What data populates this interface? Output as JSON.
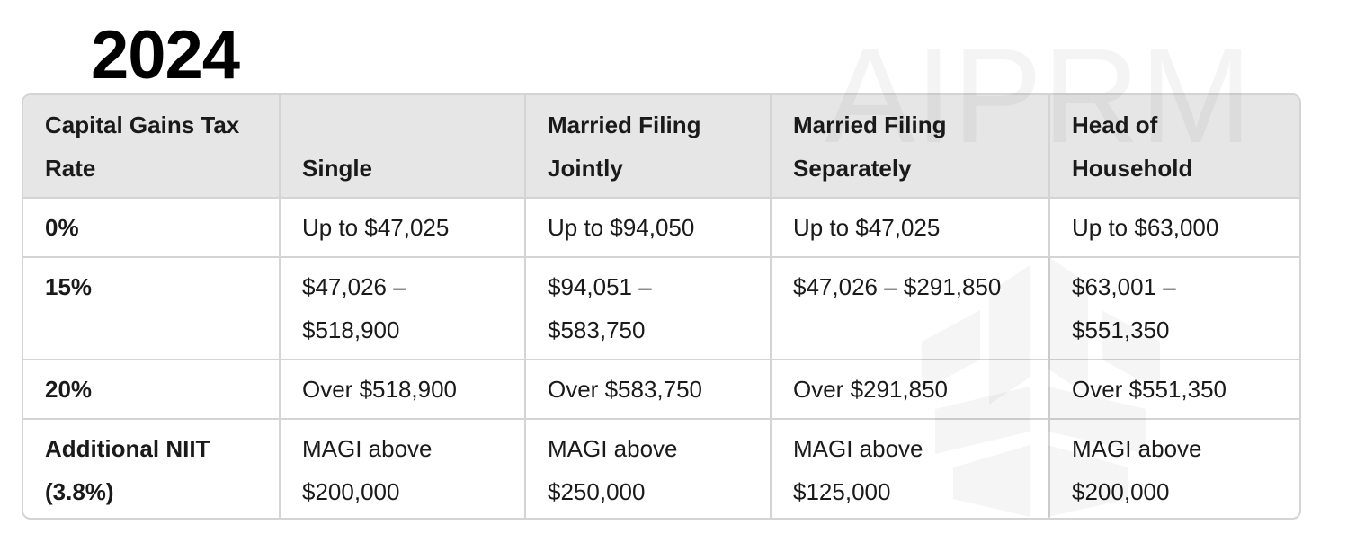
{
  "title": "2024",
  "watermark_text": "AIPRM",
  "table": {
    "headers": [
      [
        "Capital Gains Tax",
        "Rate"
      ],
      [
        "Single"
      ],
      [
        "Married Filing",
        "Jointly"
      ],
      [
        "Married Filing",
        "Separately"
      ],
      [
        "Head of",
        "Household"
      ]
    ],
    "rows": [
      {
        "rate": [
          "0%"
        ],
        "single": [
          "Up to $47,025"
        ],
        "married_jointly": [
          "Up to $94,050"
        ],
        "married_separately": [
          "Up to $47,025"
        ],
        "head_of_household": [
          "Up to $63,000"
        ]
      },
      {
        "rate": [
          "15%"
        ],
        "single": [
          "$47,026 –",
          "$518,900"
        ],
        "married_jointly": [
          "$94,051 –",
          "$583,750"
        ],
        "married_separately": [
          "$47,026 – $291,850"
        ],
        "head_of_household": [
          "$63,001 –",
          "$551,350"
        ]
      },
      {
        "rate": [
          "20%"
        ],
        "single": [
          "Over $518,900"
        ],
        "married_jointly": [
          "Over $583,750"
        ],
        "married_separately": [
          "Over $291,850"
        ],
        "head_of_household": [
          "Over $551,350"
        ]
      },
      {
        "rate": [
          "Additional NIIT",
          "(3.8%)"
        ],
        "single": [
          "MAGI above",
          "$200,000"
        ],
        "married_jointly": [
          "MAGI above",
          "$250,000"
        ],
        "married_separately": [
          "MAGI above",
          "$125,000"
        ],
        "head_of_household": [
          "MAGI above",
          "$200,000"
        ]
      }
    ]
  }
}
